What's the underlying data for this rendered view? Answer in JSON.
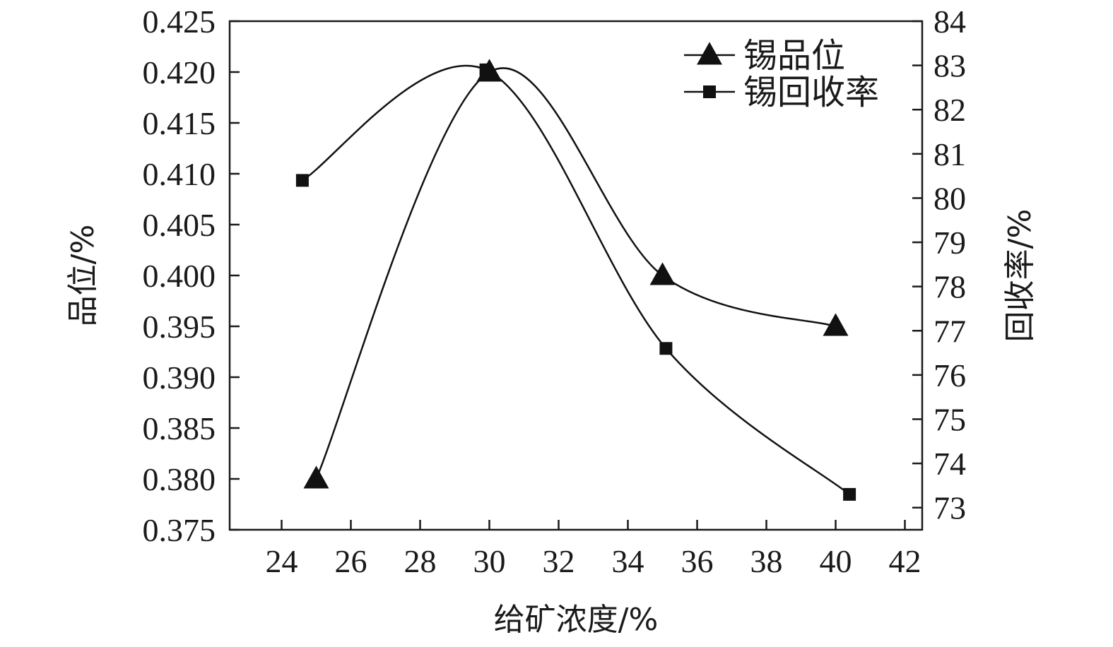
{
  "chart_data": {
    "type": "line",
    "xlabel": "给矿浓度/%",
    "ylabel_left": "品位/%",
    "ylabel_right": "回收率/%",
    "xlim": [
      22.5,
      42.5
    ],
    "x_ticks": [
      "24",
      "26",
      "28",
      "30",
      "32",
      "34",
      "36",
      "38",
      "40",
      "42"
    ],
    "ylim_left": [
      0.375,
      0.425
    ],
    "y_ticks_left": [
      "0.425",
      "0.420",
      "0.415",
      "0.410",
      "0.405",
      "0.400",
      "0.395",
      "0.390",
      "0.385",
      "0.380",
      "0.375"
    ],
    "ylim_right": [
      72.5,
      84
    ],
    "y_ticks_right": [
      "84",
      "83",
      "82",
      "81",
      "80",
      "79",
      "78",
      "77",
      "76",
      "75",
      "74",
      "73"
    ],
    "grid": false,
    "legend_position": "top-right",
    "series": [
      {
        "name": "锡品位",
        "axis": "left",
        "marker": "triangle",
        "x": [
          25,
          30,
          35,
          40
        ],
        "y": [
          0.38,
          0.42,
          0.4,
          0.395
        ]
      },
      {
        "name": "锡回收率",
        "axis": "right",
        "marker": "square",
        "x": [
          24.6,
          29.9,
          35.1,
          40.4
        ],
        "y": [
          80.4,
          82.9,
          76.6,
          73.3
        ]
      }
    ]
  }
}
